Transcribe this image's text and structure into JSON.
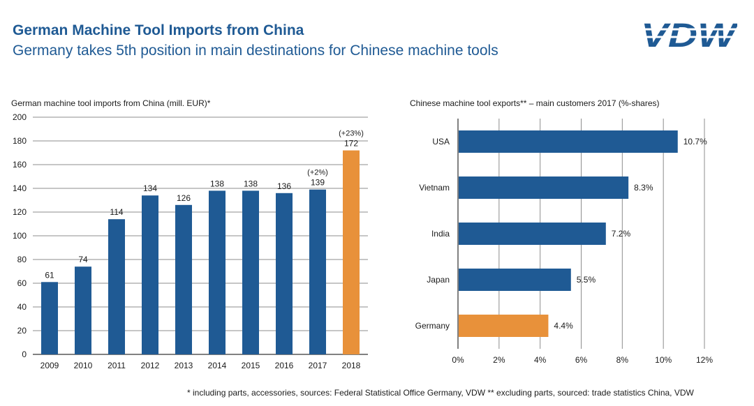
{
  "header": {
    "title": "German Machine Tool Imports from China",
    "subtitle": "Germany takes 5th position in main destinations for Chinese machine tools",
    "logo_text": "VDW",
    "logo_color": "#1f5a94"
  },
  "colors": {
    "primary_bar": "#1f5a94",
    "highlight_bar": "#e8913a",
    "grid": "#8c8c8c",
    "axis": "#000000"
  },
  "chart_data": [
    {
      "type": "bar",
      "title": "German machine tool imports from China (mill. EUR)*",
      "xlabel": "",
      "ylabel": "",
      "categories": [
        "2009",
        "2010",
        "2011",
        "2012",
        "2013",
        "2014",
        "2015",
        "2016",
        "2017",
        "2018"
      ],
      "values": [
        61,
        74,
        114,
        134,
        126,
        138,
        138,
        136,
        139,
        172
      ],
      "data_labels": [
        "61",
        "74",
        "114",
        "134",
        "126",
        "138",
        "138",
        "136",
        "139",
        "172"
      ],
      "growth_annotations": [
        "",
        "",
        "",
        "",
        "",
        "",
        "",
        "",
        "(+2%)",
        "(+23%)"
      ],
      "highlight": [
        false,
        false,
        false,
        false,
        false,
        false,
        false,
        false,
        false,
        true
      ],
      "ylim": [
        0,
        200
      ],
      "yticks": [
        0,
        20,
        40,
        60,
        80,
        100,
        120,
        140,
        160,
        180,
        200
      ],
      "ytick_labels": [
        "0",
        "20",
        "40",
        "60",
        "80",
        "100",
        "120",
        "140",
        "160",
        "180",
        "200"
      ],
      "grid": true
    },
    {
      "type": "bar",
      "orientation": "horizontal",
      "title": "Chinese machine tool exports**  – main customers 2017 (%-shares)",
      "xlabel": "",
      "ylabel": "",
      "categories": [
        "USA",
        "Vietnam",
        "India",
        "Japan",
        "Germany"
      ],
      "values": [
        10.7,
        8.3,
        7.2,
        5.5,
        4.4
      ],
      "data_labels": [
        "10.7%",
        "8.3%",
        "7.2%",
        "5.5%",
        "4.4%"
      ],
      "highlight": [
        false,
        false,
        false,
        false,
        true
      ],
      "xlim": [
        0,
        12
      ],
      "xticks": [
        0,
        2,
        4,
        6,
        8,
        10,
        12
      ],
      "xtick_labels": [
        "0%",
        "2%",
        "4%",
        "6%",
        "8%",
        "10%",
        "12%"
      ],
      "grid": true
    }
  ],
  "footnote": "* including parts, accessories, sources: Federal Statistical Office Germany, VDW  ** excluding parts, sourced: trade statistics China, VDW"
}
